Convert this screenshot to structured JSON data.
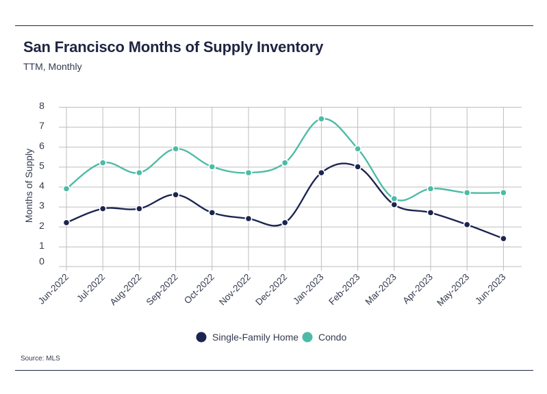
{
  "title": "San Francisco Months of Supply Inventory",
  "subtitle": "TTM, Monthly",
  "source": "Source:  MLS",
  "colors": {
    "single_family": "#1c2550",
    "condo": "#4cbba6",
    "grid": "#bdbdbd",
    "text": "#333a4d"
  },
  "chart_data": {
    "type": "line",
    "title": "San Francisco Months of Supply Inventory",
    "subtitle": "TTM, Monthly",
    "xlabel": "",
    "ylabel": "Months of Supply",
    "ylim": [
      0,
      8
    ],
    "yticks": [
      0,
      1,
      2,
      3,
      4,
      5,
      6,
      7,
      8
    ],
    "categories": [
      "Jun-2022",
      "Jul-2022",
      "Aug-2022",
      "Sep-2022",
      "Oct-2022",
      "Nov-2022",
      "Dec-2022",
      "Jan-2023",
      "Feb-2023",
      "Mar-2023",
      "Apr-2023",
      "May-2023",
      "Jun-2023"
    ],
    "series": [
      {
        "name": "Single-Family Home",
        "values": [
          2.2,
          2.9,
          2.9,
          3.6,
          2.7,
          2.4,
          2.2,
          4.7,
          5.0,
          3.1,
          2.7,
          2.1,
          1.4
        ]
      },
      {
        "name": "Condo",
        "values": [
          3.9,
          5.2,
          4.7,
          5.9,
          5.0,
          4.7,
          5.2,
          7.4,
          5.9,
          3.4,
          3.9,
          3.7,
          3.7
        ]
      }
    ],
    "legend": "bottom-center",
    "grid": true
  }
}
